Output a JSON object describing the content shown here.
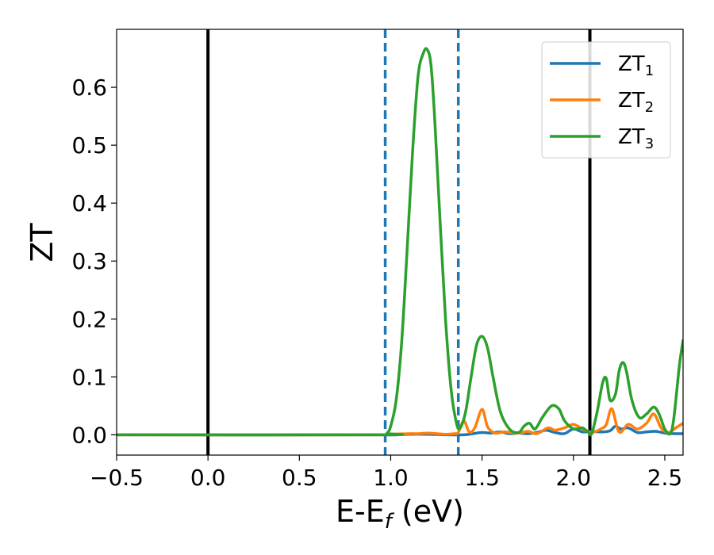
{
  "chart_data": {
    "type": "line",
    "title": "",
    "xlabel": {
      "main": "E-E",
      "sub": "f",
      "unit": " (eV)"
    },
    "ylabel": "ZT",
    "xlim": [
      -0.5,
      2.6
    ],
    "ylim": [
      -0.035,
      0.7
    ],
    "xticks": [
      -0.5,
      0.0,
      0.5,
      1.0,
      1.5,
      2.0,
      2.5
    ],
    "xtick_labels": [
      "−0.5",
      "0.0",
      "0.5",
      "1.0",
      "1.5",
      "2.0",
      "2.5"
    ],
    "yticks": [
      0.0,
      0.1,
      0.2,
      0.3,
      0.4,
      0.5,
      0.6
    ],
    "ytick_labels": [
      "0.0",
      "0.1",
      "0.2",
      "0.3",
      "0.4",
      "0.5",
      "0.6"
    ],
    "grid": false,
    "legend_position": "top-right",
    "vlines": [
      {
        "x": 0.0,
        "style": "solid",
        "color": "#000000"
      },
      {
        "x": 2.09,
        "style": "solid",
        "color": "#000000"
      },
      {
        "x": 0.97,
        "style": "dashed",
        "color": "#1f77b4"
      },
      {
        "x": 1.37,
        "style": "dashed",
        "color": "#1f77b4"
      }
    ],
    "series": [
      {
        "name": "ZT",
        "sub": "1",
        "color": "#1f77b4",
        "x": [
          -0.5,
          0.9,
          1.0,
          1.1,
          1.2,
          1.3,
          1.4,
          1.45,
          1.5,
          1.55,
          1.6,
          1.65,
          1.7,
          1.75,
          1.8,
          1.85,
          1.9,
          1.95,
          2.0,
          2.05,
          2.1,
          2.15,
          2.2,
          2.23,
          2.26,
          2.3,
          2.35,
          2.4,
          2.45,
          2.5,
          2.55,
          2.6
        ],
        "y": [
          0.0,
          0.0,
          0.0,
          0.001,
          0.001,
          0.0,
          0.0,
          0.002,
          0.004,
          0.003,
          0.005,
          0.002,
          0.003,
          0.002,
          0.004,
          0.008,
          0.004,
          0.002,
          0.01,
          0.005,
          0.006,
          0.005,
          0.007,
          0.015,
          0.01,
          0.012,
          0.004,
          0.005,
          0.006,
          0.003,
          0.002,
          0.002
        ]
      },
      {
        "name": "ZT",
        "sub": "2",
        "color": "#ff7f0e",
        "x": [
          -0.5,
          0.9,
          1.0,
          1.1,
          1.15,
          1.2,
          1.25,
          1.3,
          1.35,
          1.37,
          1.4,
          1.43,
          1.46,
          1.5,
          1.53,
          1.57,
          1.62,
          1.7,
          1.75,
          1.8,
          1.86,
          1.9,
          1.95,
          2.0,
          2.05,
          2.1,
          2.15,
          2.18,
          2.21,
          2.25,
          2.3,
          2.35,
          2.4,
          2.44,
          2.48,
          2.52,
          2.56,
          2.6
        ],
        "y": [
          0.0,
          0.0,
          0.001,
          0.002,
          0.002,
          0.003,
          0.002,
          0.001,
          0.002,
          0.004,
          0.024,
          0.005,
          0.012,
          0.044,
          0.014,
          0.003,
          0.005,
          0.003,
          0.006,
          0.002,
          0.012,
          0.008,
          0.012,
          0.018,
          0.01,
          0.004,
          0.01,
          0.018,
          0.045,
          0.005,
          0.018,
          0.01,
          0.02,
          0.036,
          0.012,
          0.004,
          0.012,
          0.02
        ]
      },
      {
        "name": "ZT",
        "sub": "3",
        "color": "#2ca02c",
        "x": [
          -0.5,
          0.95,
          0.98,
          1.0,
          1.03,
          1.06,
          1.09,
          1.12,
          1.15,
          1.18,
          1.2,
          1.22,
          1.24,
          1.27,
          1.3,
          1.33,
          1.36,
          1.38,
          1.41,
          1.44,
          1.47,
          1.5,
          1.53,
          1.56,
          1.6,
          1.65,
          1.7,
          1.73,
          1.76,
          1.79,
          1.83,
          1.88,
          1.92,
          1.95,
          1.99,
          2.02,
          2.05,
          2.08,
          2.1,
          2.13,
          2.16,
          2.18,
          2.2,
          2.23,
          2.25,
          2.27,
          2.29,
          2.32,
          2.36,
          2.4,
          2.44,
          2.47,
          2.5,
          2.53,
          2.55,
          2.58,
          2.6
        ],
        "y": [
          0.0,
          0.0,
          0.003,
          0.015,
          0.06,
          0.16,
          0.32,
          0.49,
          0.62,
          0.66,
          0.665,
          0.64,
          0.55,
          0.37,
          0.2,
          0.08,
          0.02,
          0.012,
          0.04,
          0.1,
          0.155,
          0.17,
          0.15,
          0.1,
          0.04,
          0.01,
          0.004,
          0.015,
          0.02,
          0.01,
          0.03,
          0.05,
          0.045,
          0.025,
          0.012,
          0.01,
          0.012,
          0.005,
          0.002,
          0.04,
          0.09,
          0.097,
          0.06,
          0.07,
          0.11,
          0.125,
          0.11,
          0.06,
          0.03,
          0.036,
          0.048,
          0.035,
          0.01,
          0.002,
          0.03,
          0.12,
          0.163
        ]
      }
    ]
  }
}
